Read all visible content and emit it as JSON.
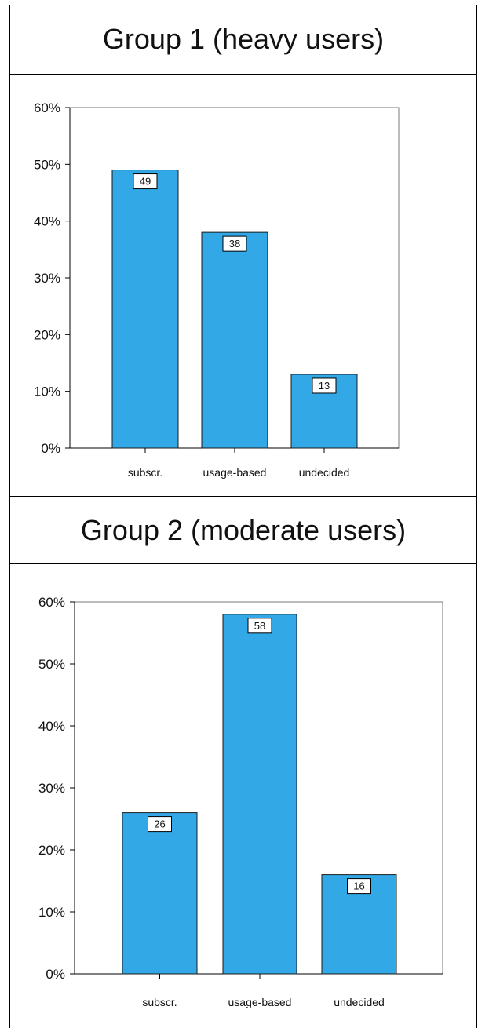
{
  "charts": [
    {
      "title": "Group 1 (heavy users)"
    },
    {
      "title": "Group 2 (moderate users)"
    }
  ],
  "colors": {
    "bar": "#32a9e6",
    "bar_stroke": "#1b1b1b"
  },
  "chart_data": [
    {
      "type": "bar",
      "title": "Group 1 (heavy users)",
      "categories": [
        "subscr.",
        "usage-based",
        "undecided"
      ],
      "values": [
        49,
        38,
        13
      ],
      "data_labels": [
        "49",
        "38",
        "13"
      ],
      "ylim": [
        0,
        60
      ],
      "yticks": [
        "0%",
        "10%",
        "20%",
        "30%",
        "40%",
        "50%",
        "60%"
      ],
      "grid": false,
      "xlabel": "",
      "ylabel": ""
    },
    {
      "type": "bar",
      "title": "Group 2 (moderate users)",
      "categories": [
        "subscr.",
        "usage-based",
        "undecided"
      ],
      "values": [
        26,
        58,
        16
      ],
      "data_labels": [
        "26",
        "58",
        "16"
      ],
      "ylim": [
        0,
        60
      ],
      "yticks": [
        "0%",
        "10%",
        "20%",
        "30%",
        "40%",
        "50%",
        "60%"
      ],
      "grid": false,
      "xlabel": "",
      "ylabel": ""
    }
  ]
}
